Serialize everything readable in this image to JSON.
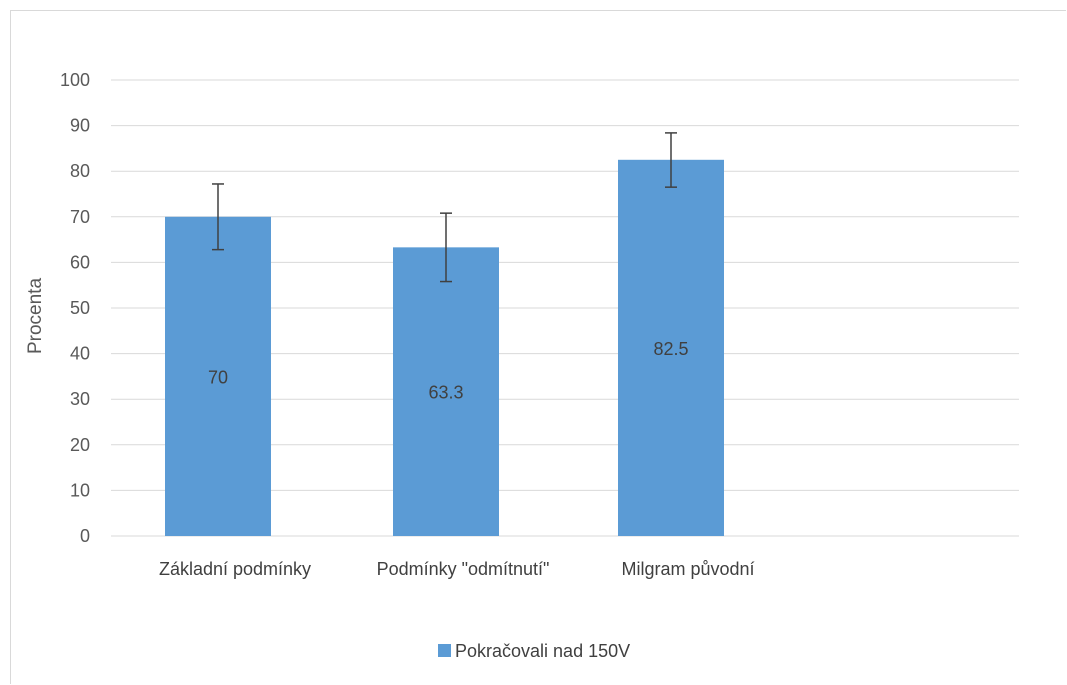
{
  "chart_data": {
    "type": "bar",
    "categories": [
      "Základní podmínky",
      "Podmínky \"odmítnutí\"",
      "Milgram původní"
    ],
    "series": [
      {
        "name": "Pokračovali nad 150V",
        "values": [
          70,
          63.3,
          82.5
        ],
        "error_low": [
          62.8,
          55.8,
          76.5
        ],
        "error_high": [
          77.2,
          70.8,
          88.4
        ],
        "color": "#5b9bd5"
      }
    ],
    "data_labels": [
      "70",
      "63.3",
      "82.5"
    ],
    "title": "",
    "xlabel": "",
    "ylabel": "Procenta",
    "ylim": [
      0,
      100
    ],
    "yticks": [
      0,
      10,
      20,
      30,
      40,
      50,
      60,
      70,
      80,
      90,
      100
    ],
    "grid": true,
    "legend": "bottom",
    "colors": {
      "grid": "#d9d9d9",
      "error_bar": "#404040"
    }
  }
}
